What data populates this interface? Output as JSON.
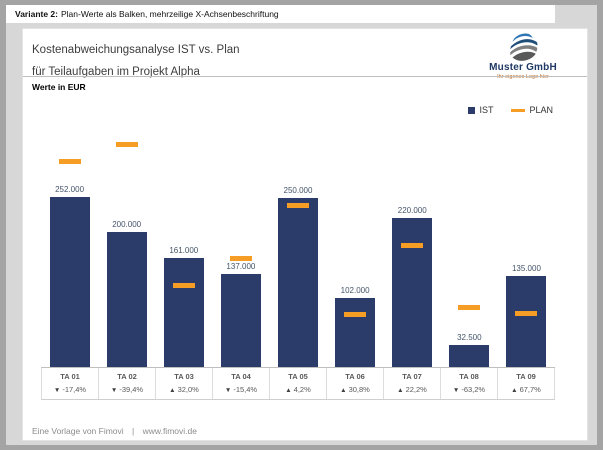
{
  "window": {
    "header_bold": "Variante 2:",
    "header_rest": "Plan-Werte als Balken, mehrzeilige X-Achsenbeschriftung"
  },
  "report": {
    "title_line1": "Kostenabweichungsanalyse IST vs. Plan",
    "title_line2": "für Teilaufgaben im Projekt Alpha",
    "units_label": "Werte in EUR"
  },
  "logo": {
    "company": "Muster GmbH",
    "tagline": "Ihr eigenes Logo hier"
  },
  "legend": {
    "ist_label": "IST",
    "plan_label": "PLAN"
  },
  "footer": {
    "text": "Eine Vorlage von Fimovi",
    "separator": "|",
    "url": "www.fimovi.de"
  },
  "colors": {
    "ist_bar": "#2b3c6b",
    "plan_marker": "#f59d25",
    "value_label": "#44546a",
    "logo_navy": "#1f3864",
    "tagline_orange": "#c06a1e"
  },
  "chart_data": {
    "type": "bar",
    "title": "Kostenabweichungsanalyse IST vs. Plan für Teilaufgaben im Projekt Alpha",
    "ylabel": "Werte in EUR",
    "categories": [
      "TA 01",
      "TA 02",
      "TA 03",
      "TA 04",
      "TA 05",
      "TA 06",
      "TA 07",
      "TA 08",
      "TA 09"
    ],
    "series": [
      {
        "name": "IST",
        "values": [
          252000,
          200000,
          161000,
          137000,
          250000,
          102000,
          220000,
          32500,
          135000
        ],
        "labels": [
          "252.000",
          "200.000",
          "161.000",
          "137.000",
          "250.000",
          "102.000",
          "220.000",
          "32.500",
          "135.000"
        ]
      },
      {
        "name": "PLAN",
        "values": [
          305000,
          330000,
          122000,
          162000,
          240000,
          78000,
          180000,
          88500,
          80500
        ]
      }
    ],
    "deviation_pct": [
      -17.4,
      -39.4,
      32.0,
      -15.4,
      4.2,
      30.8,
      22.2,
      -63.2,
      67.7
    ],
    "deviations": [
      {
        "arrow": "▼",
        "value": "-17,4%"
      },
      {
        "arrow": "▼",
        "value": "-39,4%"
      },
      {
        "arrow": "▲",
        "value": "32,0%"
      },
      {
        "arrow": "▼",
        "value": "-15,4%"
      },
      {
        "arrow": "▲",
        "value": "4,2%"
      },
      {
        "arrow": "▲",
        "value": "30,8%"
      },
      {
        "arrow": "▲",
        "value": "22,2%"
      },
      {
        "arrow": "▼",
        "value": "-63,2%"
      },
      {
        "arrow": "▲",
        "value": "67,7%"
      }
    ],
    "ylim": [
      0,
      370000
    ],
    "grid": false,
    "legend_position": "top-right"
  }
}
